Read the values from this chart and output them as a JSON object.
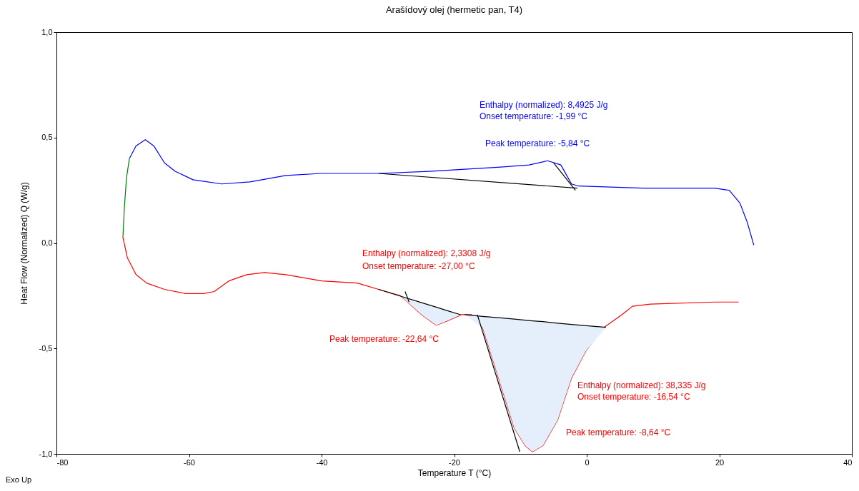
{
  "chart_data": {
    "type": "line",
    "title": "Arašídový olej (hermetic pan, T4)",
    "xlabel": "Temperature T (°C)",
    "ylabel": "Heat Flow (Normalized) Q (W/g)",
    "xlim": [
      -80,
      40
    ],
    "xticks": [
      -80,
      -60,
      -40,
      -20,
      0,
      20,
      40
    ],
    "ylim": [
      -1,
      1
    ],
    "yticks": [
      {
        "value": -1,
        "label": "-1,0"
      },
      {
        "value": -0.5,
        "label": "-0,5"
      },
      {
        "value": 0,
        "label": "0,0"
      },
      {
        "value": 0.5,
        "label": "0,5"
      },
      {
        "value": 1,
        "label": "1,0"
      }
    ],
    "grid": false,
    "series": [
      {
        "color": "#008000",
        "x": [
          -69.97,
          -69.75,
          -69.43,
          -69.0
        ],
        "values": [
          0.03,
          0.17,
          0.31,
          0.4
        ]
      },
      {
        "color": "#0000ff",
        "x": [
          -69.0,
          -68.0,
          -66.6,
          -65.3,
          -63.7,
          -62.1,
          -59.4,
          -55.1,
          -50.8,
          -45.4,
          -40.0,
          -31.4,
          -23.8,
          -13.0,
          -8.7,
          -5.9,
          -3.9,
          -2.3,
          -1.2,
          8.5,
          19.3,
          21.5,
          23.1,
          24.2,
          25.2
        ],
        "values": [
          0.4,
          0.46,
          0.49,
          0.46,
          0.38,
          0.34,
          0.3,
          0.28,
          0.29,
          0.32,
          0.33,
          0.33,
          0.34,
          0.36,
          0.37,
          0.39,
          0.37,
          0.28,
          0.27,
          0.26,
          0.26,
          0.25,
          0.19,
          0.1,
          -0.01
        ]
      },
      {
        "color": "#ff0000",
        "x": [
          -70.0,
          -69.3,
          -68.0,
          -66.4,
          -63.7,
          -60.5,
          -57.8,
          -56.2,
          -54.0,
          -51.3,
          -48.6,
          -45.4,
          -40.0,
          -34.6,
          -31.4,
          -28.1,
          -24.9,
          -22.7,
          -21.1,
          -18.9,
          -17.4,
          -15.7,
          -13.0,
          -10.9,
          -9.3,
          -8.2,
          -6.6,
          -4.4,
          -2.3,
          -0.1,
          2.6,
          5.3,
          6.9,
          9.6,
          19.3,
          22.9
        ],
        "values": [
          0.03,
          -0.07,
          -0.15,
          -0.19,
          -0.22,
          -0.24,
          -0.24,
          -0.23,
          -0.18,
          -0.15,
          -0.14,
          -0.15,
          -0.18,
          -0.19,
          -0.22,
          -0.25,
          -0.34,
          -0.39,
          -0.37,
          -0.34,
          -0.34,
          -0.4,
          -0.67,
          -0.88,
          -0.96,
          -0.99,
          -0.96,
          -0.84,
          -0.64,
          -0.51,
          -0.4,
          -0.34,
          -0.3,
          -0.29,
          -0.28,
          -0.28
        ]
      },
      {
        "color": "#000000",
        "x": [
          -31.4,
          -1.4
        ],
        "values": [
          0.33,
          0.26
        ]
      },
      {
        "color": "#000000",
        "x": [
          -5.0,
          -1.7
        ],
        "values": [
          0.38,
          0.25
        ]
      },
      {
        "color": "#000000",
        "x": [
          -31.4,
          -28.1,
          -24.9,
          -22.7,
          -21.1,
          -19.0
        ],
        "values": [
          -0.22,
          -0.252,
          -0.283,
          -0.304,
          -0.32,
          -0.34
        ],
        "lower": [
          -0.22,
          -0.25,
          -0.34,
          -0.39,
          -0.37,
          -0.34
        ],
        "upper": [
          -0.22,
          -0.252,
          -0.283,
          -0.304,
          -0.32,
          -0.34
        ]
      },
      {
        "color": "#000000",
        "x": [
          -18.4,
          -15.7,
          -13.0,
          -10.9,
          -9.3,
          -8.2,
          -6.6,
          -4.4,
          -2.3,
          -0.1,
          2.9
        ],
        "values": [
          -0.34,
          -0.348,
          -0.355,
          -0.361,
          -0.366,
          -0.369,
          -0.373,
          -0.38,
          -0.386,
          -0.392,
          -0.4
        ],
        "lower": [
          -0.34,
          -0.4,
          -0.67,
          -0.88,
          -0.96,
          -0.99,
          -0.96,
          -0.84,
          -0.64,
          -0.51,
          -0.4
        ],
        "upper": [
          -0.34,
          -0.348,
          -0.355,
          -0.361,
          -0.366,
          -0.369,
          -0.373,
          -0.38,
          -0.386,
          -0.392,
          -0.4
        ]
      },
      {
        "color": "#000000",
        "x": [
          -27.4,
          -26.8
        ],
        "values": [
          -0.23,
          -0.28
        ]
      },
      {
        "color": "#000000",
        "x": [
          -16.5,
          -10.1
        ],
        "values": [
          -0.34,
          -0.99
        ]
      }
    ],
    "annotations": [
      "Enthalpy (normalized): 8,4925 J/g",
      "Onset temperature: -1,99 °C",
      "Peak temperature: -5,84 °C",
      "Enthalpy (normalized): 2,3308 J/g",
      "Onset temperature: -27,00 °C",
      "Peak temperature: -22,64 °C",
      "Enthalpy (normalized): 38,335 J/g",
      "Onset temperature: -16,54 °C",
      "Peak temperature: -8,64 °C",
      "Exo Up"
    ]
  }
}
